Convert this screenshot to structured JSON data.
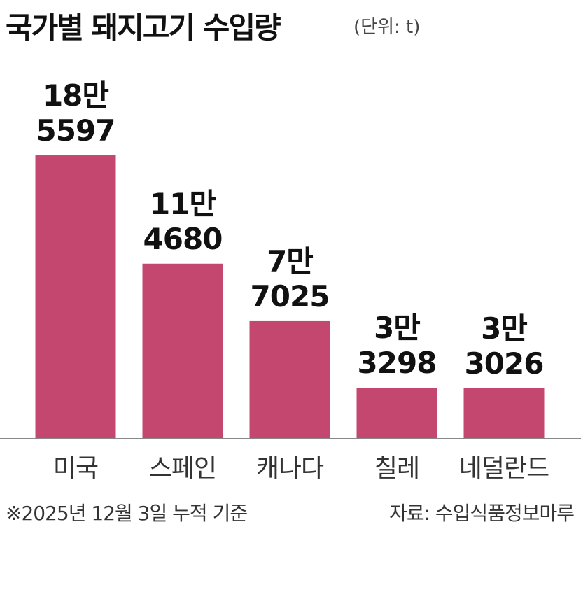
{
  "chart_data": {
    "type": "bar",
    "title": "국가별 돼지고기 수입량",
    "subtitle": "(단위: t)",
    "categories": [
      "미국",
      "스페인",
      "캐나다",
      "칠레",
      "네덜란드"
    ],
    "values": [
      185597,
      114680,
      77025,
      33298,
      33026
    ],
    "value_labels": [
      "18만\n5597",
      "11만\n4680",
      "7만\n7025",
      "3만\n3298",
      "3만\n3026"
    ],
    "color": "#c4476f",
    "footnote": "※2025년 12월 3일 누적 기준",
    "source": "자료: 수입식품정보마루"
  }
}
